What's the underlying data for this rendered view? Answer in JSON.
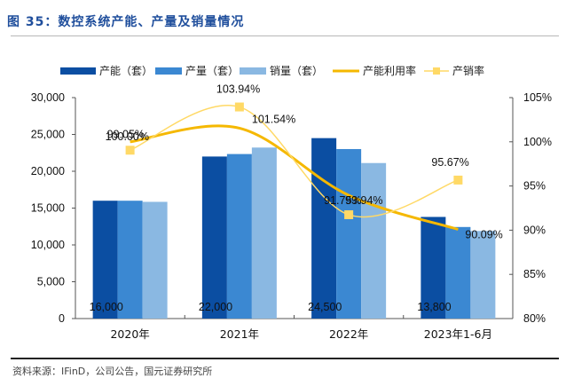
{
  "title": "图 35：数控系统产能、产量及销量情况",
  "source": "资料来源：IFinD，公司公告，国元证券研究所",
  "colors": {
    "capacity": "#0b4ea2",
    "production": "#3b88d2",
    "sales": "#8ab8e2",
    "utilization": "#f5b800",
    "sell_through": "#ffd966",
    "title": "#1f4e9c"
  },
  "chart_data": {
    "type": "bar",
    "title": "数控系统产能、产量及销量情况",
    "categories": [
      "2020年",
      "2021年",
      "2022年",
      "2023年1-6月"
    ],
    "series": [
      {
        "name": "产能（套）",
        "type": "bar",
        "axis": "left",
        "color_key": "capacity",
        "values": [
          16000,
          22000,
          24500,
          13800
        ],
        "labels": [
          "16,000",
          "22,000",
          "24,500",
          "13,800"
        ]
      },
      {
        "name": "产量（套）",
        "type": "bar",
        "axis": "left",
        "color_key": "production",
        "values": [
          16000,
          22339,
          23015,
          12432
        ]
      },
      {
        "name": "销量（套）",
        "type": "bar",
        "axis": "left",
        "color_key": "sales",
        "values": [
          15848,
          23219,
          21116,
          11894
        ]
      },
      {
        "name": "产能利用率",
        "type": "line",
        "axis": "right",
        "color_key": "utilization",
        "smooth": true,
        "marker": false,
        "values": [
          100.0,
          101.54,
          93.94,
          90.09
        ],
        "labels": [
          "100.00%",
          "101.54%",
          "93.94%",
          "90.09%"
        ]
      },
      {
        "name": "产销率",
        "type": "line",
        "axis": "right",
        "color_key": "sell_through",
        "smooth": true,
        "marker": "square",
        "values": [
          99.05,
          103.94,
          91.75,
          95.67
        ],
        "labels": [
          "99.05%",
          "103.94%",
          "91.75%",
          "95.67%"
        ]
      }
    ],
    "y_left": {
      "min": 0,
      "max": 30000,
      "step": 5000,
      "tick_labels": [
        "0",
        "5,000",
        "10,000",
        "15,000",
        "20,000",
        "25,000",
        "30,000"
      ]
    },
    "y_right": {
      "min": 80,
      "max": 105,
      "step": 5,
      "tick_labels": [
        "80%",
        "85%",
        "90%",
        "95%",
        "100%",
        "105%"
      ]
    },
    "xlabel": "",
    "ylabel": "",
    "grid": false,
    "legend_position": "top"
  }
}
